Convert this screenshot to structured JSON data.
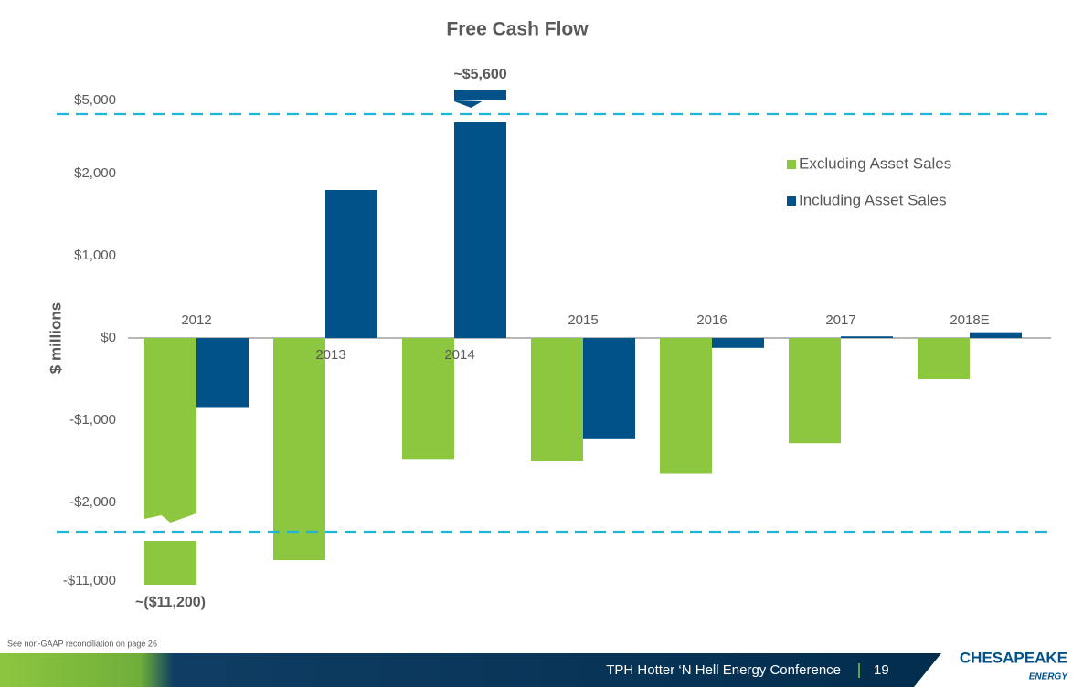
{
  "chart_data": {
    "type": "bar",
    "title": "Free Cash Flow",
    "y_label": "$ millions",
    "categories": [
      "2012",
      "2013",
      "2014",
      "2015",
      "2016",
      "2017",
      "2018E"
    ],
    "series": [
      {
        "name": "Excluding Asset Sales",
        "color": "#8dc63f",
        "values": [
          -11200,
          -2700,
          -1470,
          -1500,
          -1650,
          -1280,
          -500
        ],
        "value_labels": [
          "~($11,200)",
          null,
          null,
          null,
          null,
          null,
          null
        ]
      },
      {
        "name": "Including Asset Sales",
        "color": "#005288",
        "values": [
          -850,
          1800,
          5600,
          -1220,
          -120,
          20,
          70
        ],
        "value_labels": [
          null,
          null,
          "~$5,600",
          null,
          null,
          null,
          null
        ]
      }
    ],
    "yticks": [
      {
        "value": 5000,
        "label": "$5,000"
      },
      {
        "value": 2000,
        "label": "$2,000"
      },
      {
        "value": 1000,
        "label": "$1,000"
      },
      {
        "value": 0,
        "label": "$0"
      },
      {
        "value": -1000,
        "label": "-$1,000"
      },
      {
        "value": -2000,
        "label": "-$2,000"
      },
      {
        "value": -11000,
        "label": "-$11,000"
      }
    ],
    "axis_break": true,
    "legend": "upper right"
  },
  "footer": {
    "note": "See non-GAAP reconciliation on page 26",
    "conference": "TPH Hotter ‘N Hell Energy Conference",
    "page": "19",
    "logo": "CHESAPEAKE",
    "logo_sub": "ENERGY"
  }
}
